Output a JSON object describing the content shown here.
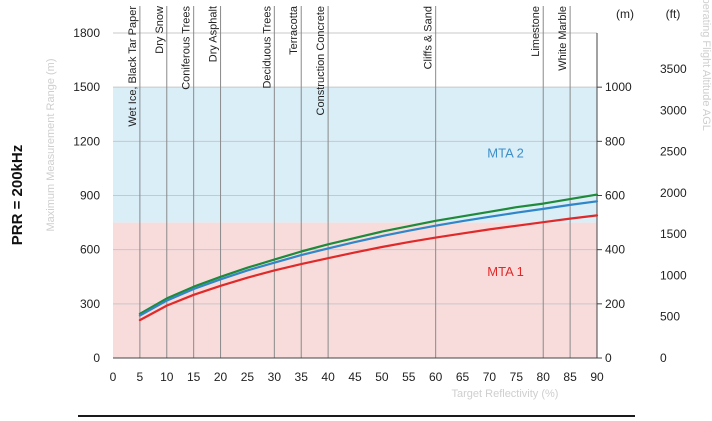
{
  "chart_data": {
    "type": "line",
    "side_title": "PRR = 200kHz",
    "ylabel_left": "Maximum Measurement Range (m)",
    "ylabel_right": "Operating Flight Altitude AGL",
    "xlabel": "Target Reflectivity (%)",
    "unit_m": "(m)",
    "unit_ft": "(ft)",
    "xlim": [
      0,
      90
    ],
    "ylim": [
      0,
      1800
    ],
    "x_ticks": [
      0,
      5,
      10,
      15,
      20,
      25,
      30,
      35,
      40,
      45,
      50,
      55,
      60,
      65,
      70,
      75,
      80,
      85,
      90
    ],
    "y_ticks": [
      0,
      300,
      600,
      900,
      1200,
      1500,
      1800
    ],
    "right_m_ticks": [
      0,
      200,
      400,
      600,
      800,
      1000
    ],
    "right_ft_ticks": [
      0,
      500,
      1000,
      1500,
      2000,
      2500,
      3000,
      3500
    ],
    "materials": [
      {
        "label": "Wet Ice, Black Tar Paper",
        "x": 5
      },
      {
        "label": "Dry Snow",
        "x": 10
      },
      {
        "label": "Coniferous Trees",
        "x": 15
      },
      {
        "label": "Dry Asphalt",
        "x": 20
      },
      {
        "label": "Deciduous Trees",
        "x": 30
      },
      {
        "label": "Terracotta",
        "x": 35
      },
      {
        "label": "Construction Concrete",
        "x": 40
      },
      {
        "label": "Cliffs & Sand",
        "x": 60
      },
      {
        "label": "Limestone",
        "x": 80
      },
      {
        "label": "White Marble",
        "x": 85
      }
    ],
    "regions": [
      {
        "label": "MTA 2",
        "from": 750,
        "to": 1500,
        "color": "#daeef8",
        "text_color": "#3e8fc9",
        "label_x": 73,
        "label_y": 1110
      },
      {
        "label": "MTA 1",
        "from": 0,
        "to": 750,
        "color": "#f8dcdc",
        "text_color": "#e02a2a",
        "label_x": 73,
        "label_y": 455
      }
    ],
    "x": [
      5,
      10,
      15,
      20,
      25,
      30,
      35,
      40,
      45,
      50,
      55,
      60,
      65,
      70,
      75,
      80,
      85,
      90
    ],
    "series": [
      {
        "color": "#1f8a3a",
        "values": [
          245,
          330,
          395,
          450,
          500,
          545,
          590,
          630,
          665,
          700,
          730,
          760,
          785,
          810,
          835,
          855,
          880,
          905
        ]
      },
      {
        "color": "#2f86c8",
        "values": [
          235,
          318,
          382,
          436,
          485,
          528,
          570,
          607,
          642,
          675,
          705,
          733,
          758,
          782,
          805,
          826,
          848,
          868
        ]
      },
      {
        "color": "#e02a2a",
        "values": [
          210,
          290,
          350,
          400,
          445,
          485,
          520,
          553,
          585,
          615,
          642,
          667,
          690,
          712,
          732,
          752,
          772,
          790
        ]
      }
    ]
  }
}
